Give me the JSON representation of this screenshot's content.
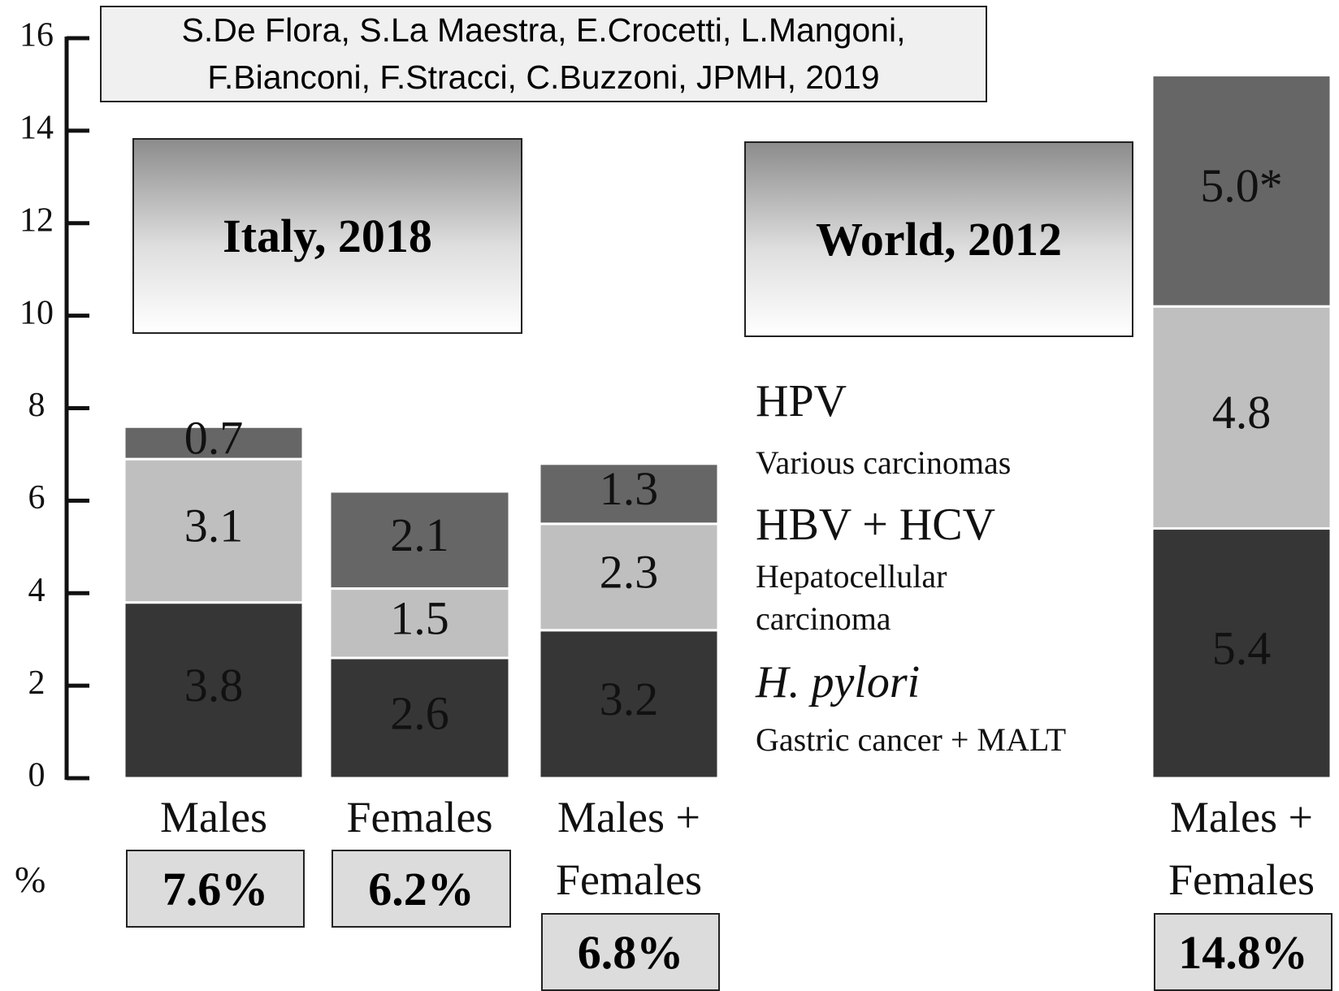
{
  "chart_data": {
    "type": "stacked_bar",
    "citation": [
      "S.De Flora, S.La Maestra, E.Crocetti, L.Mangoni,",
      "F.Bianconi, F.Stracci, C.Buzzoni, JPMH, 2019"
    ],
    "panel_labels": [
      "Italy, 2018",
      "World, 2012"
    ],
    "categories": [
      "Males",
      "Females",
      "Males + Females",
      "Males + Females"
    ],
    "series": [
      {
        "name": "H. pylori",
        "description": "Gastric cancer + MALT",
        "color": "#363636",
        "values": [
          3.8,
          2.6,
          3.2,
          5.4
        ],
        "value_labels": [
          "3.8",
          "2.6",
          "3.2",
          "5.4"
        ]
      },
      {
        "name": "HBV + HCV",
        "description": "Hepatocellular carcinoma",
        "color": "#bfbfbf",
        "values": [
          3.1,
          1.5,
          2.3,
          4.8
        ],
        "value_labels": [
          "3.1",
          "1.5",
          "2.3",
          "4.8"
        ]
      },
      {
        "name": "HPV",
        "description": "Various carcinomas",
        "color": "#666666",
        "values": [
          0.7,
          2.1,
          1.3,
          5.0
        ],
        "value_labels": [
          "0.7",
          "2.1",
          "1.3",
          "5.0*"
        ]
      }
    ],
    "total_label": "%",
    "totals": [
      7.6,
      6.2,
      6.8,
      14.8
    ],
    "total_labels": [
      "7.6%",
      "6.2%",
      "6.8%",
      "14.8%"
    ],
    "ylim": [
      0,
      16
    ],
    "yticks": [
      0,
      2,
      4,
      6,
      8,
      10,
      12,
      14,
      16
    ]
  }
}
